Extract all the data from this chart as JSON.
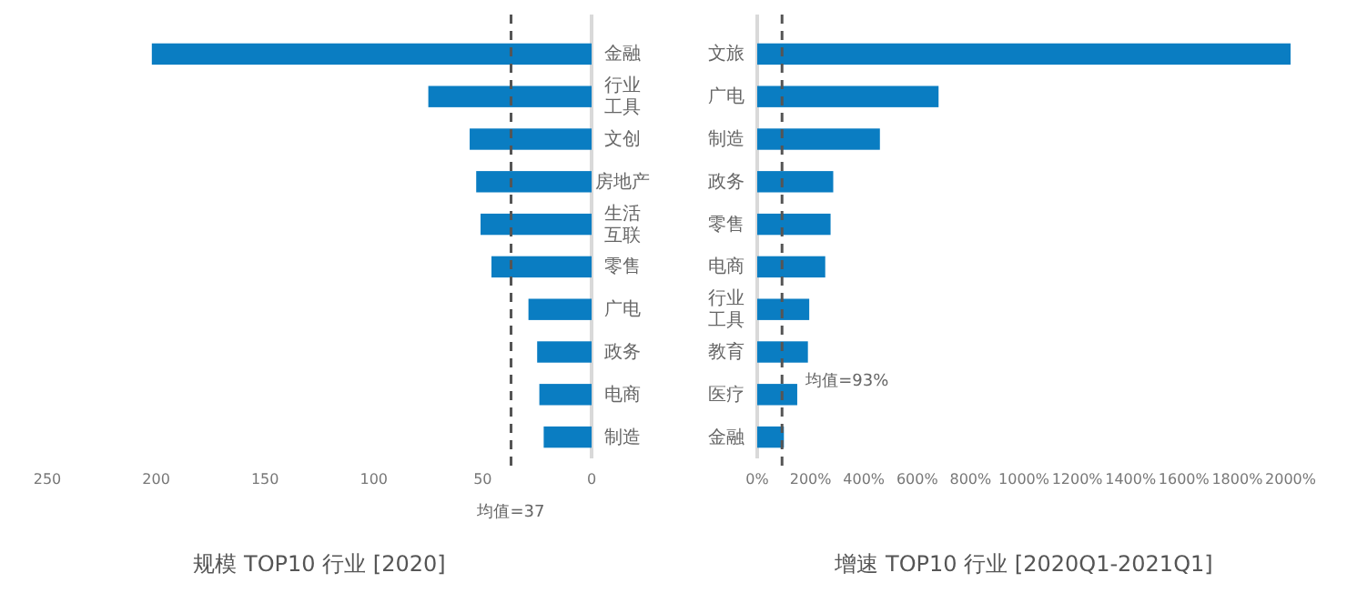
{
  "chart_data": [
    {
      "type": "bar",
      "orientation": "horizontal",
      "title": "规模 TOP10 行业 [2020]",
      "categories": [
        "金融",
        "行业工具",
        "文创",
        "房地产",
        "生活互联",
        "零售",
        "广电",
        "政务",
        "电商",
        "制造"
      ],
      "values": [
        202,
        75,
        56,
        53,
        51,
        46,
        29,
        25,
        24,
        22
      ],
      "color": "#0a7dc2",
      "xlim": [
        250,
        0
      ],
      "xticks": [
        250,
        200,
        150,
        100,
        50,
        0
      ],
      "grid": false,
      "ref_lines": [
        {
          "axis": "x",
          "value": 37,
          "label": "均值=37",
          "color": "#555555",
          "line_style": "dashed"
        }
      ]
    },
    {
      "type": "bar",
      "orientation": "horizontal",
      "title": "增速 TOP10 行业 [2020Q1-2021Q1]",
      "categories": [
        "文旅",
        "广电",
        "制造",
        "政务",
        "零售",
        "电商",
        "行业工具",
        "教育",
        "医疗",
        "金融"
      ],
      "values": [
        2000,
        680,
        460,
        285,
        275,
        255,
        195,
        190,
        150,
        100
      ],
      "color": "#0a7dc2",
      "xlim": [
        0,
        2000
      ],
      "xticks": [
        {
          "value": 0,
          "label": "0%"
        },
        {
          "value": 200,
          "label": "200%"
        },
        {
          "value": 400,
          "label": "400%"
        },
        {
          "value": 600,
          "label": "600%"
        },
        {
          "value": 800,
          "label": "800%"
        },
        {
          "value": 1000,
          "label": "1000%"
        },
        {
          "value": 1200,
          "label": "1200%"
        },
        {
          "value": 1400,
          "label": "1400%"
        },
        {
          "value": 1600,
          "label": "1600%"
        },
        {
          "value": 1800,
          "label": "1800%"
        },
        {
          "value": 2000,
          "label": "2000%"
        }
      ],
      "grid": false,
      "ref_lines": [
        {
          "axis": "x",
          "value": 93,
          "label": "均值=93%",
          "color": "#555555",
          "line_style": "dashed"
        }
      ]
    }
  ]
}
